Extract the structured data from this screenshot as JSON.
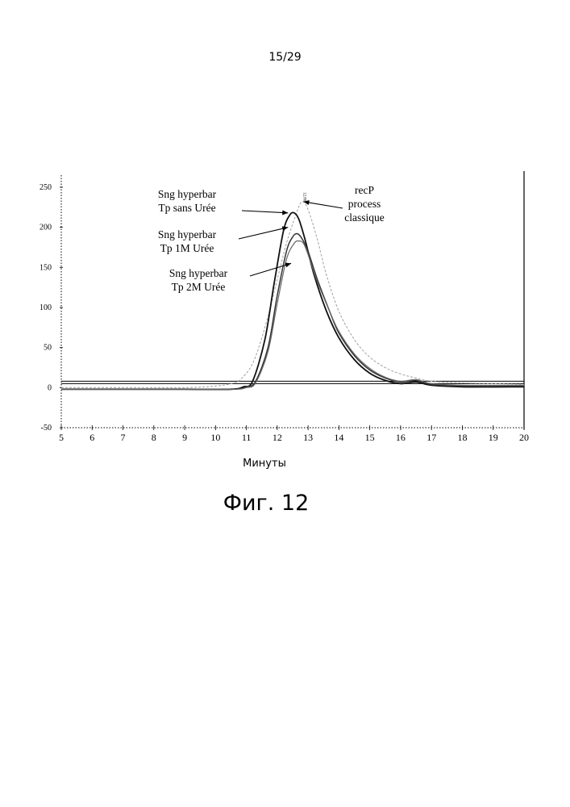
{
  "page": {
    "number": "15/29",
    "caption": "Фиг. 12"
  },
  "chart_data": {
    "type": "line",
    "xlabel": "Минуты",
    "ylabel": "",
    "xlim": [
      5,
      20
    ],
    "ylim": [
      -50,
      250
    ],
    "xticks": [
      "5",
      "6",
      "7",
      "8",
      "9",
      "10",
      "11",
      "12",
      "13",
      "14",
      "15",
      "16",
      "17",
      "18",
      "19",
      "20"
    ],
    "yticks": [
      "250",
      "200",
      "150",
      "100",
      "50",
      "0",
      "-50"
    ],
    "peak_marker": "12.80",
    "series": [
      {
        "name": "recP process classique",
        "color": "#a8a8a8",
        "x": [
          5,
          7,
          9,
          10,
          10.5,
          10.8,
          11.2,
          11.6,
          12.0,
          12.3,
          12.6,
          12.8,
          13.0,
          13.3,
          13.6,
          14.0,
          14.5,
          15.0,
          15.5,
          16.0,
          16.5,
          17.0,
          18.0,
          20.0
        ],
        "y": [
          0,
          0,
          0,
          2,
          5,
          10,
          30,
          75,
          135,
          180,
          215,
          232,
          222,
          185,
          140,
          95,
          60,
          38,
          25,
          17,
          12,
          8,
          6,
          4
        ]
      },
      {
        "name": "Sng hyperbar Tp sans Urée",
        "color": "#111111",
        "x": [
          5,
          7,
          9,
          10.5,
          10.9,
          11.2,
          11.6,
          11.9,
          12.2,
          12.4,
          12.55,
          12.7,
          12.9,
          13.2,
          13.6,
          14.0,
          14.5,
          15.0,
          15.5,
          16.0,
          16.5,
          17.0,
          18.0,
          20.0
        ],
        "y": [
          -2,
          -2,
          -2,
          -2,
          1,
          8,
          60,
          130,
          195,
          215,
          218,
          210,
          185,
          140,
          95,
          62,
          35,
          18,
          9,
          5,
          7,
          3,
          1,
          1
        ]
      },
      {
        "name": "Sng hyperbar Tp 1M Urée",
        "color": "#333333",
        "x": [
          5,
          7,
          9,
          10.6,
          11.0,
          11.3,
          11.7,
          12.0,
          12.3,
          12.5,
          12.65,
          12.8,
          13.0,
          13.3,
          13.7,
          14.0,
          14.5,
          15.0,
          15.5,
          16.0,
          16.5,
          17.0,
          18.0,
          20.0
        ],
        "y": [
          -2,
          -2,
          -2,
          -2,
          1,
          8,
          50,
          115,
          170,
          188,
          192,
          186,
          170,
          135,
          95,
          68,
          40,
          22,
          12,
          7,
          9,
          4,
          2,
          2
        ]
      },
      {
        "name": "Sng hyperbar Tp 2M Urée",
        "color": "#666666",
        "x": [
          5,
          7,
          9,
          10.6,
          11.0,
          11.3,
          11.7,
          12.0,
          12.3,
          12.55,
          12.7,
          12.85,
          13.0,
          13.3,
          13.7,
          14.0,
          14.5,
          15.0,
          15.5,
          16.0,
          16.5,
          17.0,
          18.0,
          20.0
        ],
        "y": [
          -2,
          -2,
          -2,
          -2,
          0,
          6,
          45,
          105,
          160,
          180,
          183,
          180,
          166,
          132,
          95,
          70,
          42,
          24,
          13,
          8,
          10,
          5,
          3,
          3
        ]
      }
    ],
    "annotations": [
      {
        "lines": [
          "Sng hyperbar",
          "Tp sans Urée"
        ],
        "target_series": 1,
        "point": [
          12.35,
          218
        ]
      },
      {
        "lines": [
          "Sng hyperbar",
          "Tp 1M Urée"
        ],
        "target_series": 2,
        "point": [
          12.35,
          200
        ]
      },
      {
        "lines": [
          "Sng hyperbar",
          "Tp 2M Urée"
        ],
        "target_series": 3,
        "point": [
          12.45,
          155
        ]
      },
      {
        "lines": [
          "recP",
          "process",
          "classique"
        ],
        "target_series": 0,
        "point": [
          12.85,
          232
        ]
      }
    ],
    "baselines": [
      {
        "y": 8,
        "style": "solid"
      },
      {
        "y": 5,
        "style": "solid"
      }
    ],
    "grid": false,
    "legend": "none"
  }
}
